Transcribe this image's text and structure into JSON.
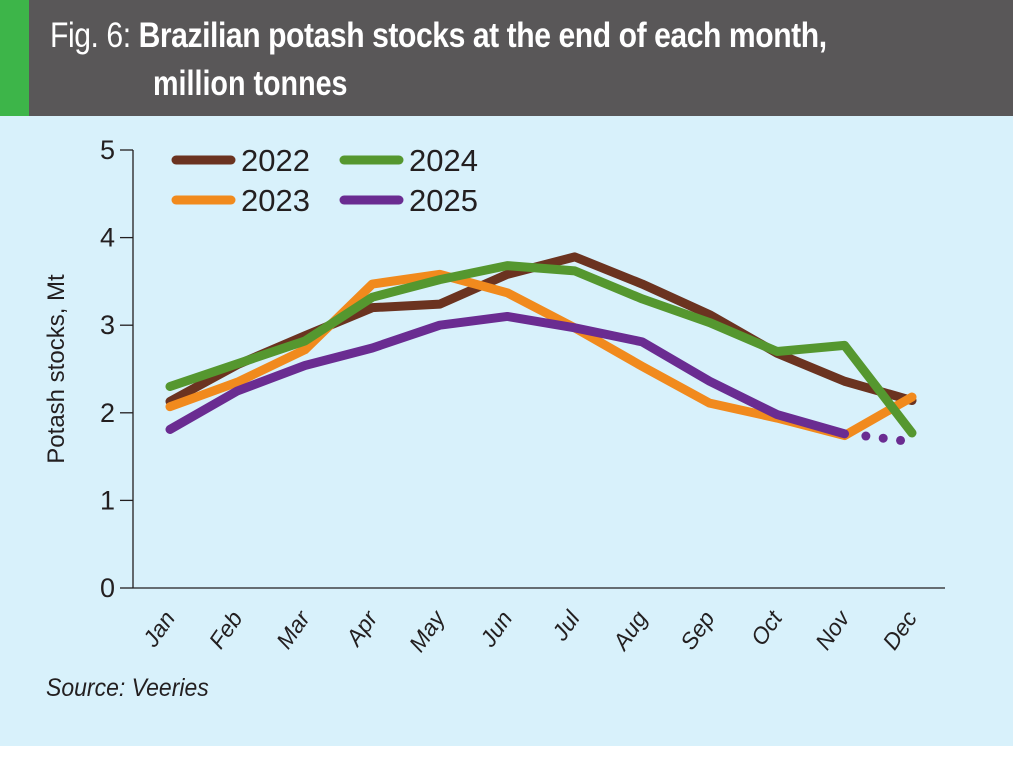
{
  "header": {
    "fig_label": "Fig. 6:",
    "title_line1": "Brazilian potash stocks at the end of each month,",
    "title_line2": "million tonnes",
    "accent_color": "#3db549",
    "background_color": "#595758"
  },
  "source": "Source: Veeries",
  "chart_data": {
    "type": "line",
    "title": "Brazilian potash stocks at the end of each month, million tonnes",
    "xlabel": "",
    "ylabel": "Potash stocks, Mt",
    "ylim": [
      0,
      5
    ],
    "yticks": [
      "0",
      "1",
      "2",
      "3",
      "4",
      "5"
    ],
    "grid": false,
    "legend_position": "top-left",
    "categories": [
      "Jan",
      "Feb",
      "Mar",
      "Apr",
      "May",
      "Jun",
      "Jul",
      "Aug",
      "Sep",
      "Oct",
      "Nov",
      "Dec"
    ],
    "series": [
      {
        "name": "2022",
        "color": "#6b3320",
        "values": [
          2.13,
          2.55,
          2.88,
          3.2,
          3.24,
          3.58,
          3.78,
          3.47,
          3.12,
          2.68,
          2.36,
          2.14
        ]
      },
      {
        "name": "2023",
        "color": "#f18a1d",
        "values": [
          2.07,
          2.35,
          2.72,
          3.47,
          3.58,
          3.37,
          2.97,
          2.53,
          2.11,
          1.94,
          1.74,
          2.18
        ]
      },
      {
        "name": "2024",
        "color": "#55972f",
        "values": [
          2.3,
          2.56,
          2.82,
          3.32,
          3.52,
          3.68,
          3.62,
          3.3,
          3.03,
          2.7,
          2.77,
          1.77
        ]
      },
      {
        "name": "2025",
        "color": "#6a2c91",
        "values": [
          1.81,
          2.25,
          2.54,
          2.74,
          3.0,
          3.1,
          2.97,
          2.81,
          2.36,
          1.98,
          1.76,
          null
        ],
        "projection_dotted_to_dec": 1.68
      }
    ]
  }
}
